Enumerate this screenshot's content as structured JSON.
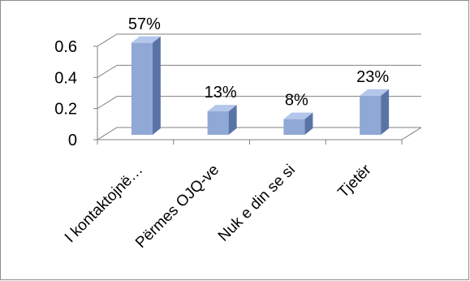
{
  "chart_data": {
    "type": "bar",
    "style": "3d-column",
    "categories": [
      "I kontaktojnë…",
      "Përmes OJQ-ve",
      "Nuk e din se si",
      "Tjetër"
    ],
    "values": [
      0.57,
      0.13,
      0.08,
      0.23
    ],
    "data_labels": [
      "57%",
      "13%",
      "8%",
      "23%"
    ],
    "y_ticks": [
      "0",
      "0.2",
      "0.4",
      "0.6"
    ],
    "ylim": [
      0,
      0.6
    ],
    "grid": true,
    "legend": "none",
    "colors": {
      "bar_front": "#90a8d6",
      "bar_side": "#5a73a6",
      "bar_top": "#b4c6ea",
      "grid": "#808080",
      "axis": "#808080",
      "border": "#8c8c8c"
    }
  }
}
